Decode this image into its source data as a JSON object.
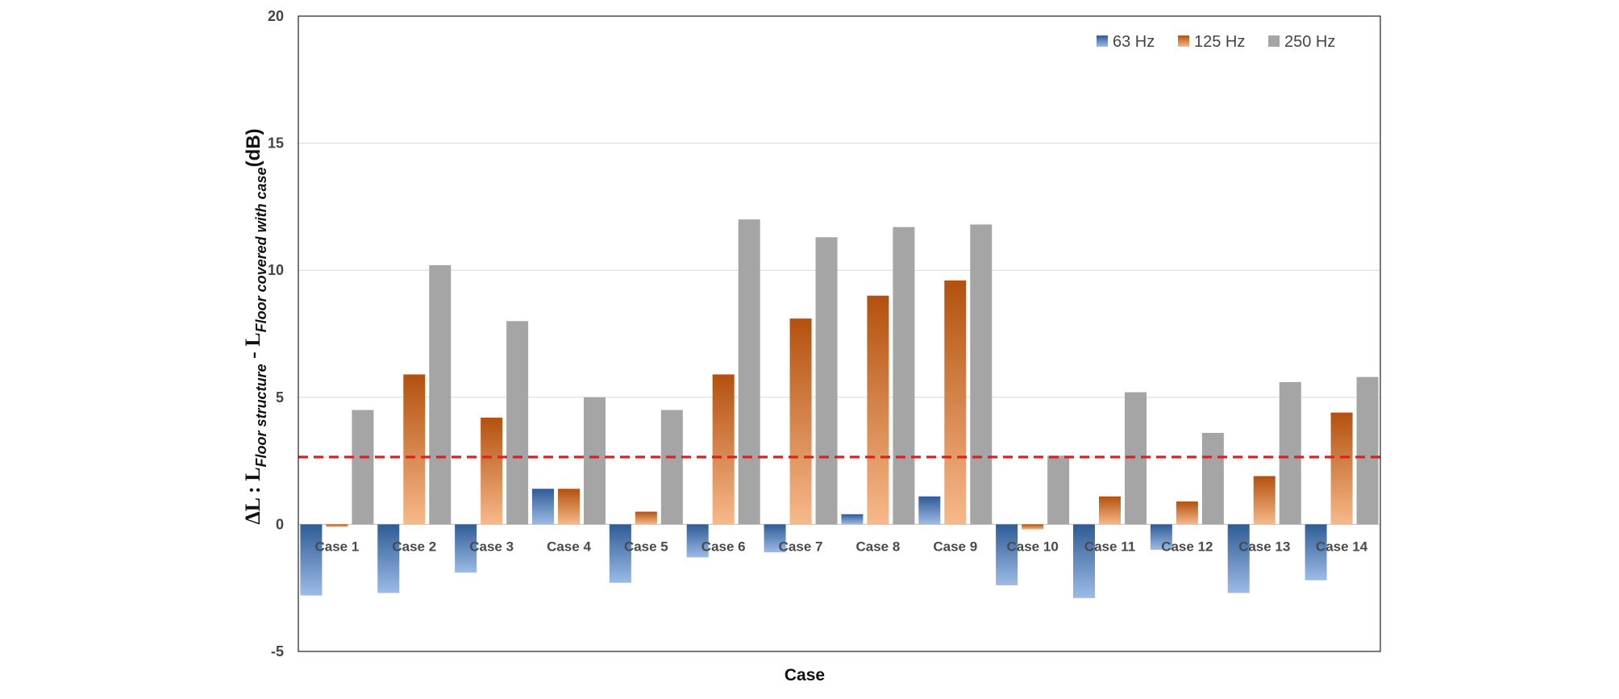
{
  "chart_data": {
    "type": "bar",
    "title": "",
    "xlabel": "Case",
    "ylabel": {
      "prefix": "ΔL : ",
      "term1_main": "L",
      "term1_sub": "Floor structure",
      "minus": " - ",
      "term2_main": "L",
      "term2_sub": "Floor covered with case",
      "unit": "(dB)"
    },
    "ylim": [
      -5,
      20
    ],
    "yticks": [
      -5,
      0,
      5,
      10,
      15,
      20
    ],
    "grid": true,
    "legend_position": "top-right",
    "categories": [
      "Case 1",
      "Case 2",
      "Case 3",
      "Case 4",
      "Case 5",
      "Case 6",
      "Case 7",
      "Case 8",
      "Case 9",
      "Case 10",
      "Case 11",
      "Case 12",
      "Case 13",
      "Case 14"
    ],
    "series": [
      {
        "name": "63 Hz",
        "color_dark": "#2e5c96",
        "color_light": "#9dbbe6",
        "values": [
          -2.8,
          -2.7,
          -1.9,
          1.4,
          -2.3,
          -1.3,
          -1.1,
          0.4,
          1.1,
          -2.4,
          -2.9,
          -1.0,
          -2.7,
          -2.2
        ]
      },
      {
        "name": "125 Hz",
        "color_dark": "#b3510e",
        "color_light": "#f7b98a",
        "values": [
          -0.1,
          5.9,
          4.2,
          1.4,
          0.5,
          5.9,
          8.1,
          9.0,
          9.6,
          -0.2,
          1.1,
          0.9,
          1.9,
          4.4
        ]
      },
      {
        "name": "250 Hz",
        "color_dark": "#a5a5a5",
        "color_light": "#a5a5a5",
        "values": [
          4.5,
          10.2,
          8.0,
          5.0,
          4.5,
          12.0,
          11.3,
          11.7,
          11.8,
          2.7,
          5.2,
          3.6,
          5.6,
          5.8
        ]
      }
    ],
    "reference_line": {
      "value": 2.65,
      "color": "#e02020",
      "style": "dashed"
    }
  }
}
